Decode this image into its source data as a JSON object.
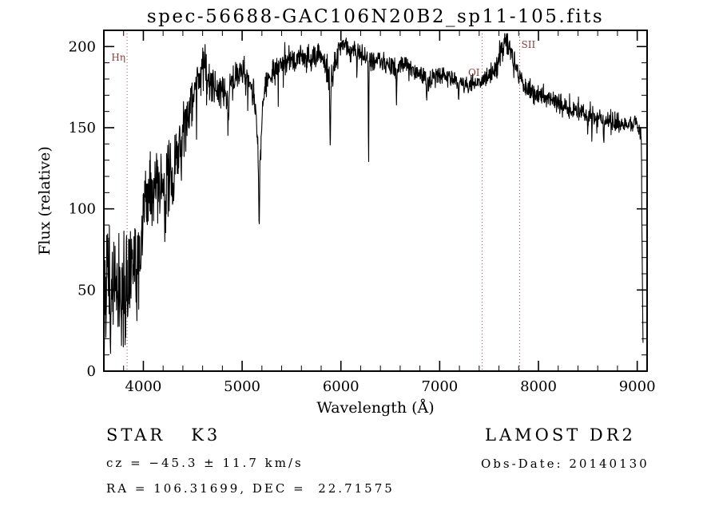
{
  "title": "spec-56688-GAC106N20B2_sp11-105.fits",
  "annotations": {
    "class_label": "STAR   K3",
    "survey": "LAMOST DR2",
    "cz": "cz = −45.3 ± 11.7 km/s",
    "obs_date": "Obs-Date: 20140130",
    "coords": "RA = 106.31699, DEC =  22.71575"
  },
  "chart_data": {
    "type": "line",
    "title": "spec-56688-GAC106N20B2_sp11-105.fits",
    "xlabel": "Wavelength (Å)",
    "ylabel": "Flux (relative)",
    "xlim": [
      3600,
      9100
    ],
    "ylim": [
      0,
      210
    ],
    "xticks": [
      4000,
      5000,
      6000,
      7000,
      8000,
      9000
    ],
    "yticks": [
      0,
      50,
      100,
      150,
      200
    ],
    "x_minor_step": 200,
    "y_minor_step": 10,
    "line_color": "#000000",
    "ref_line_color": "#aa4a4a",
    "ref_label_color": "#8b3a3a",
    "reference_lines": [
      {
        "wavelength": 3835,
        "label": "Hη",
        "dx": -2,
        "ly": 76,
        "anchor": "end"
      },
      {
        "wavelength": 7430,
        "label": "OI",
        "dx": -3,
        "ly": 95,
        "anchor": "end"
      },
      {
        "wavelength": 7810,
        "label": "SII",
        "dx": 2,
        "ly": 60,
        "anchor": "start"
      }
    ],
    "continuum": [
      [
        3602,
        2
      ],
      [
        3612,
        50
      ],
      [
        3622,
        30
      ],
      [
        3632,
        62
      ],
      [
        3642,
        78
      ],
      [
        3652,
        35
      ],
      [
        3662,
        55
      ],
      [
        3672,
        42
      ],
      [
        3682,
        60
      ],
      [
        3695,
        48
      ],
      [
        3710,
        55
      ],
      [
        3725,
        46
      ],
      [
        3745,
        57
      ],
      [
        3765,
        48
      ],
      [
        3785,
        55
      ],
      [
        3805,
        50
      ],
      [
        3825,
        56
      ],
      [
        3845,
        52
      ],
      [
        3865,
        58
      ],
      [
        3885,
        63
      ],
      [
        3905,
        72
      ],
      [
        3925,
        70
      ],
      [
        3945,
        72
      ],
      [
        3965,
        80
      ],
      [
        3985,
        92
      ],
      [
        4005,
        103
      ],
      [
        4035,
        112
      ],
      [
        4065,
        108
      ],
      [
        4095,
        118
      ],
      [
        4125,
        114
      ],
      [
        4155,
        120
      ],
      [
        4185,
        117
      ],
      [
        4215,
        122
      ],
      [
        4245,
        118
      ],
      [
        4275,
        128
      ],
      [
        4305,
        124
      ],
      [
        4335,
        133
      ],
      [
        4365,
        143
      ],
      [
        4395,
        151
      ],
      [
        4425,
        156
      ],
      [
        4455,
        163
      ],
      [
        4485,
        167
      ],
      [
        4515,
        171
      ],
      [
        4545,
        177
      ],
      [
        4575,
        182
      ],
      [
        4605,
        185
      ],
      [
        4635,
        183
      ],
      [
        4665,
        180
      ],
      [
        4695,
        178
      ],
      [
        4725,
        176
      ],
      [
        4755,
        174
      ],
      [
        4785,
        172
      ],
      [
        4815,
        171
      ],
      [
        4845,
        170
      ],
      [
        4875,
        173
      ],
      [
        4905,
        178
      ],
      [
        4935,
        182
      ],
      [
        4965,
        184
      ],
      [
        4995,
        184
      ],
      [
        5025,
        182
      ],
      [
        5055,
        180
      ],
      [
        5085,
        177
      ],
      [
        5115,
        171
      ],
      [
        5145,
        156
      ],
      [
        5175,
        117
      ],
      [
        5205,
        162
      ],
      [
        5235,
        173
      ],
      [
        5265,
        180
      ],
      [
        5295,
        184
      ],
      [
        5325,
        186
      ],
      [
        5365,
        188
      ],
      [
        5405,
        190
      ],
      [
        5455,
        191
      ],
      [
        5505,
        192
      ],
      [
        5555,
        193
      ],
      [
        5605,
        194
      ],
      [
        5655,
        193
      ],
      [
        5705,
        194
      ],
      [
        5755,
        195
      ],
      [
        5805,
        193
      ],
      [
        5855,
        187
      ],
      [
        5895,
        178
      ],
      [
        5935,
        191
      ],
      [
        5975,
        198
      ],
      [
        6015,
        202
      ],
      [
        6055,
        200
      ],
      [
        6095,
        198
      ],
      [
        6135,
        197
      ],
      [
        6175,
        196
      ],
      [
        6215,
        195
      ],
      [
        6255,
        194
      ],
      [
        6295,
        192
      ],
      [
        6335,
        191
      ],
      [
        6375,
        192
      ],
      [
        6415,
        191
      ],
      [
        6455,
        190
      ],
      [
        6495,
        189
      ],
      [
        6535,
        187
      ],
      [
        6575,
        186
      ],
      [
        6615,
        189
      ],
      [
        6655,
        188
      ],
      [
        6695,
        186
      ],
      [
        6735,
        185
      ],
      [
        6775,
        184
      ],
      [
        6815,
        183
      ],
      [
        6855,
        181
      ],
      [
        6895,
        179
      ],
      [
        6935,
        180
      ],
      [
        6975,
        181
      ],
      [
        7015,
        181
      ],
      [
        7055,
        182
      ],
      [
        7095,
        181
      ],
      [
        7135,
        180
      ],
      [
        7175,
        178
      ],
      [
        7215,
        177
      ],
      [
        7255,
        176
      ],
      [
        7295,
        176
      ],
      [
        7335,
        177
      ],
      [
        7375,
        177
      ],
      [
        7415,
        178
      ],
      [
        7455,
        179
      ],
      [
        7495,
        181
      ],
      [
        7535,
        184
      ],
      [
        7575,
        189
      ],
      [
        7615,
        195
      ],
      [
        7655,
        200
      ],
      [
        7685,
        201
      ],
      [
        7715,
        197
      ],
      [
        7745,
        190
      ],
      [
        7775,
        185
      ],
      [
        7805,
        181
      ],
      [
        7845,
        177
      ],
      [
        7885,
        174
      ],
      [
        7925,
        172
      ],
      [
        7965,
        171
      ],
      [
        8005,
        170
      ],
      [
        8055,
        169
      ],
      [
        8105,
        168
      ],
      [
        8155,
        166
      ],
      [
        8205,
        165
      ],
      [
        8255,
        163
      ],
      [
        8305,
        162
      ],
      [
        8355,
        161
      ],
      [
        8405,
        161
      ],
      [
        8455,
        160
      ],
      [
        8505,
        158
      ],
      [
        8555,
        157
      ],
      [
        8605,
        156
      ],
      [
        8655,
        155
      ],
      [
        8705,
        154
      ],
      [
        8755,
        153
      ],
      [
        8805,
        153
      ],
      [
        8855,
        152
      ],
      [
        8905,
        152
      ],
      [
        8955,
        153
      ],
      [
        9005,
        152
      ],
      [
        9030,
        150
      ],
      [
        9042,
        142
      ],
      [
        9052,
        55
      ],
      [
        9060,
        8
      ]
    ],
    "absorption_features": [
      [
        3933,
        20,
        7
      ],
      [
        3968,
        16,
        7
      ],
      [
        4101,
        18,
        6
      ],
      [
        4226,
        28,
        5
      ],
      [
        4305,
        20,
        8
      ],
      [
        4383,
        22,
        5
      ],
      [
        4455,
        12,
        5
      ],
      [
        4861,
        16,
        5
      ],
      [
        5172,
        26,
        7
      ],
      [
        5892,
        44,
        5
      ],
      [
        6162,
        10,
        5
      ],
      [
        6280,
        62,
        4
      ],
      [
        6563,
        20,
        5
      ],
      [
        6867,
        14,
        7
      ],
      [
        7190,
        8,
        7
      ],
      [
        8498,
        12,
        4
      ],
      [
        8542,
        16,
        4
      ],
      [
        8662,
        16,
        4
      ]
    ],
    "noise": [
      [
        3600,
        20
      ],
      [
        3750,
        19
      ],
      [
        3900,
        14
      ],
      [
        4050,
        12
      ],
      [
        4200,
        11
      ],
      [
        4400,
        9
      ],
      [
        4600,
        7
      ],
      [
        4800,
        6
      ],
      [
        5000,
        5
      ],
      [
        5300,
        4.5
      ],
      [
        5600,
        4
      ],
      [
        6000,
        3.5
      ],
      [
        6500,
        3.2
      ],
      [
        7000,
        3
      ],
      [
        7500,
        3.3
      ],
      [
        7650,
        5
      ],
      [
        7800,
        3.2
      ],
      [
        8000,
        3
      ],
      [
        8500,
        3.5
      ],
      [
        9000,
        3
      ]
    ]
  }
}
